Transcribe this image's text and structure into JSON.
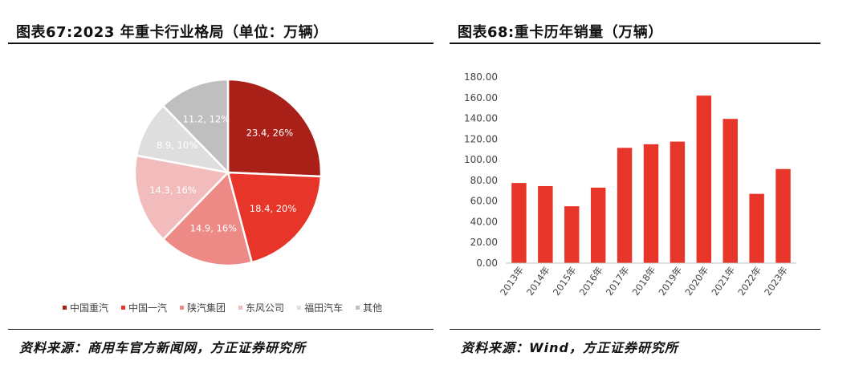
{
  "left": {
    "title": "图表67:2023 年重卡行业格局（单位：万辆）",
    "source": "资料来源：商用车官方新闻网，方正证券研究所"
  },
  "right": {
    "title": "图表68:重卡历年销量（万辆）",
    "source": "资料来源：Wind，方正证券研究所"
  },
  "chart_data": [
    {
      "type": "pie",
      "slices": [
        {
          "name": "中国重汽",
          "value": 23.4,
          "label": "23.4, 26%",
          "color": "#a82018",
          "label_color": "#ffffff"
        },
        {
          "name": "中国一汽",
          "value": 18.4,
          "label": "18.4, 20%",
          "color": "#e8352a",
          "label_color": "#ffffff"
        },
        {
          "name": "陕汽集团",
          "value": 14.9,
          "label": "14.9, 16%",
          "color": "#ee8a86",
          "label_color": "#ffffff"
        },
        {
          "name": "东风公司",
          "value": 14.3,
          "label": "14.3, 16%",
          "color": "#f2bcbc",
          "label_color": "#ffffff"
        },
        {
          "name": "福田汽车",
          "value": 8.9,
          "label": "8.9, 10%",
          "color": "#dedede",
          "label_color": "#ffffff"
        },
        {
          "name": "其他",
          "value": 11.2,
          "label": "11.2, 12%",
          "color": "#bfbfbf",
          "label_color": "#ffffff"
        }
      ],
      "legend_position": "bottom"
    },
    {
      "type": "bar",
      "categories": [
        "2013年",
        "2014年",
        "2015年",
        "2016年",
        "2017年",
        "2018年",
        "2019年",
        "2020年",
        "2021年",
        "2022年",
        "2023年"
      ],
      "values": [
        77.5,
        74.5,
        55.0,
        73.0,
        111.5,
        115.0,
        117.5,
        162.0,
        139.5,
        67.0,
        91.0
      ],
      "ylim": [
        0,
        180
      ],
      "yticks": [
        "0.00",
        "20.00",
        "40.00",
        "60.00",
        "80.00",
        "100.00",
        "120.00",
        "140.00",
        "160.00",
        "180.00"
      ],
      "color": "#e8352a",
      "grid": false
    }
  ]
}
